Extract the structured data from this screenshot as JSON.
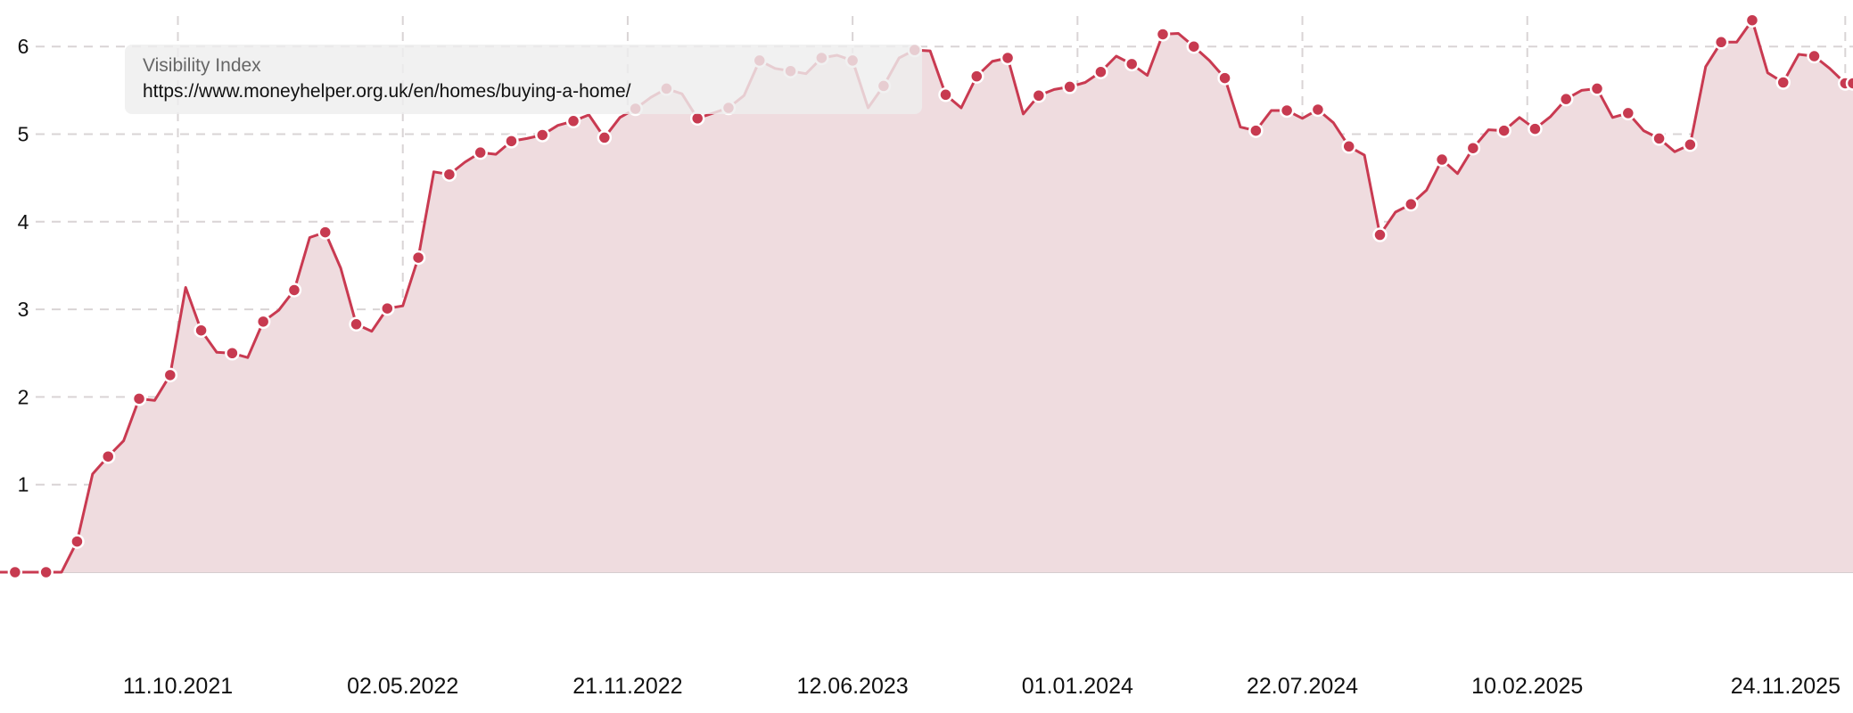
{
  "tooltip": {
    "title": "Visibility Index",
    "url": "https://www.moneyhelper.org.uk/en/homes/buying-a-home/"
  },
  "colors": {
    "line": "#c93a51",
    "area": "#efdcdf",
    "marker": "#c73a50",
    "grid": "#d9d4d5"
  },
  "chart_data": {
    "type": "area",
    "title": "",
    "xlabel": "",
    "ylabel": "",
    "ylim": [
      0,
      6.6
    ],
    "grid": true,
    "legend": "none",
    "y_ticks": [
      "1",
      "2",
      "3",
      "4",
      "5",
      "6"
    ],
    "x_ticks": [
      "11.10.2021",
      "02.05.2022",
      "21.11.2022",
      "12.06.2023",
      "01.01.2024",
      "22.07.2024",
      "10.02.2025",
      "24.11.2025"
    ],
    "series": [
      {
        "x": [
          "2021-05-03",
          "2021-05-17",
          "2021-05-31",
          "2021-06-14",
          "2021-06-28",
          "2021-07-12",
          "2021-07-26",
          "2021-08-09",
          "2021-08-23",
          "2021-09-06",
          "2021-09-20",
          "2021-10-04",
          "2021-10-18",
          "2021-11-01",
          "2021-11-15",
          "2021-11-29",
          "2021-12-13",
          "2021-12-27",
          "2022-01-10",
          "2022-01-24",
          "2022-02-07",
          "2022-02-21",
          "2022-03-07",
          "2022-03-21",
          "2022-04-04",
          "2022-04-18",
          "2022-05-02",
          "2022-05-16",
          "2022-05-30",
          "2022-06-13",
          "2022-06-27",
          "2022-07-11",
          "2022-07-25",
          "2022-08-08",
          "2022-08-22",
          "2022-09-05",
          "2022-09-19",
          "2022-10-03",
          "2022-10-17",
          "2022-10-31",
          "2022-11-14",
          "2022-11-28",
          "2022-12-12",
          "2022-12-26",
          "2023-01-09",
          "2023-01-23",
          "2023-02-06",
          "2023-02-20",
          "2023-03-06",
          "2023-03-20",
          "2023-04-03",
          "2023-04-17",
          "2023-05-01",
          "2023-05-15",
          "2023-05-29",
          "2023-06-12",
          "2023-06-26",
          "2023-07-10",
          "2023-07-24",
          "2023-08-07",
          "2023-08-21",
          "2023-09-04",
          "2023-09-18",
          "2023-10-02",
          "2023-10-16",
          "2023-10-30",
          "2023-11-13",
          "2023-11-27",
          "2023-12-11",
          "2023-12-25",
          "2024-01-08",
          "2024-01-22",
          "2024-02-05",
          "2024-02-19",
          "2024-03-04",
          "2024-03-18",
          "2024-04-01",
          "2024-04-15",
          "2024-04-29",
          "2024-05-13",
          "2024-05-27",
          "2024-06-10",
          "2024-06-24",
          "2024-07-08",
          "2024-07-22",
          "2024-08-05",
          "2024-08-19",
          "2024-09-02",
          "2024-09-16",
          "2024-09-30",
          "2024-10-14",
          "2024-10-28",
          "2024-11-11",
          "2024-11-25",
          "2024-12-09",
          "2024-12-23",
          "2025-01-06",
          "2025-01-20",
          "2025-02-03",
          "2025-02-17",
          "2025-03-03",
          "2025-03-17",
          "2025-03-31",
          "2025-04-14",
          "2025-04-28",
          "2025-05-12",
          "2025-05-26",
          "2025-06-09",
          "2025-06-23",
          "2025-07-07",
          "2025-07-21",
          "2025-08-04",
          "2025-08-18",
          "2025-09-01",
          "2025-09-15",
          "2025-09-29",
          "2025-10-13",
          "2025-10-27",
          "2025-11-10",
          "2025-11-24",
          "2025-12-01"
        ],
        "values": [
          0,
          0,
          0,
          0,
          0,
          0.35,
          1.12,
          1.32,
          1.5,
          1.98,
          1.96,
          2.25,
          3.25,
          2.76,
          2.51,
          2.5,
          2.45,
          2.86,
          2.99,
          3.22,
          3.82,
          3.88,
          3.47,
          2.83,
          2.75,
          3.01,
          3.04,
          3.59,
          4.57,
          4.54,
          4.68,
          4.79,
          4.77,
          4.92,
          4.95,
          4.99,
          5.1,
          5.15,
          5.22,
          4.96,
          5.19,
          5.29,
          5.42,
          5.52,
          5.46,
          5.18,
          5.24,
          5.3,
          5.44,
          5.84,
          5.75,
          5.72,
          5.69,
          5.87,
          5.9,
          5.84,
          5.3,
          5.55,
          5.87,
          5.96,
          5.95,
          5.45,
          5.3,
          5.66,
          5.83,
          5.87,
          5.23,
          5.44,
          5.51,
          5.54,
          5.59,
          5.71,
          5.89,
          5.8,
          5.67,
          6.14,
          6.15,
          6.0,
          5.84,
          5.64,
          5.08,
          5.04,
          5.27,
          5.27,
          5.18,
          5.28,
          5.13,
          4.86,
          4.76,
          3.85,
          4.11,
          4.2,
          4.36,
          4.71,
          4.55,
          4.84,
          5.05,
          5.04,
          5.19,
          5.06,
          5.2,
          5.4,
          5.5,
          5.52,
          5.19,
          5.24,
          5.04,
          4.95,
          4.8,
          4.88,
          5.77,
          6.05,
          6.05,
          6.3,
          5.7,
          5.59,
          5.91,
          5.89,
          5.75,
          5.58,
          5.58
        ]
      }
    ]
  }
}
